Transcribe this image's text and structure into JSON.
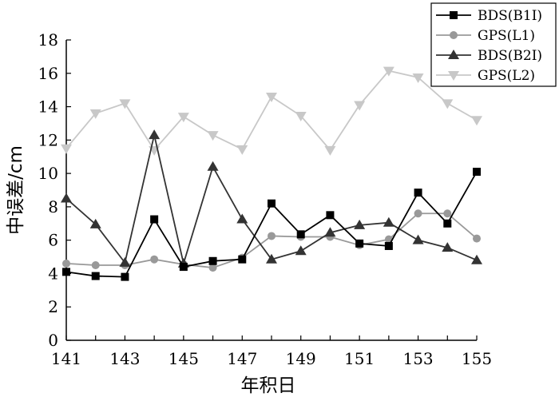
{
  "chart_data": {
    "type": "line",
    "xlabel": "年积日",
    "ylabel": "中误差/cm",
    "x": [
      141,
      142,
      143,
      144,
      145,
      146,
      147,
      148,
      149,
      150,
      151,
      152,
      153,
      154,
      155
    ],
    "xlim": [
      141,
      155
    ],
    "xticks": [
      141,
      143,
      145,
      147,
      149,
      151,
      153,
      155
    ],
    "ylim": [
      0,
      18
    ],
    "yticks": [
      0,
      2,
      4,
      6,
      8,
      10,
      12,
      14,
      16,
      18
    ],
    "grid": false,
    "legend_position": "top-right",
    "series": [
      {
        "name": "BDS(B1I)",
        "marker": "square",
        "color": "#000000",
        "values": [
          4.1,
          3.85,
          3.8,
          7.25,
          4.4,
          4.75,
          4.85,
          8.2,
          6.35,
          7.5,
          5.8,
          5.65,
          8.85,
          7.0,
          10.1
        ]
      },
      {
        "name": "GPS(L1)",
        "marker": "circle",
        "color": "#999999",
        "values": [
          4.6,
          4.5,
          4.5,
          4.85,
          4.55,
          4.35,
          4.95,
          6.25,
          6.2,
          6.2,
          5.7,
          6.05,
          7.6,
          7.6,
          6.1
        ]
      },
      {
        "name": "BDS(B2I)",
        "marker": "triangle-up",
        "color": "#333333",
        "values": [
          8.5,
          6.95,
          4.65,
          12.3,
          4.6,
          10.4,
          7.25,
          4.85,
          5.35,
          6.45,
          6.9,
          7.05,
          6.0,
          5.55,
          4.8
        ]
      },
      {
        "name": "GPS(L2)",
        "marker": "triangle-down",
        "color": "#c8c8c8",
        "values": [
          11.5,
          13.6,
          14.2,
          11.4,
          13.4,
          12.3,
          11.45,
          14.6,
          13.45,
          11.4,
          14.1,
          16.15,
          15.75,
          14.2,
          13.2
        ]
      }
    ]
  }
}
